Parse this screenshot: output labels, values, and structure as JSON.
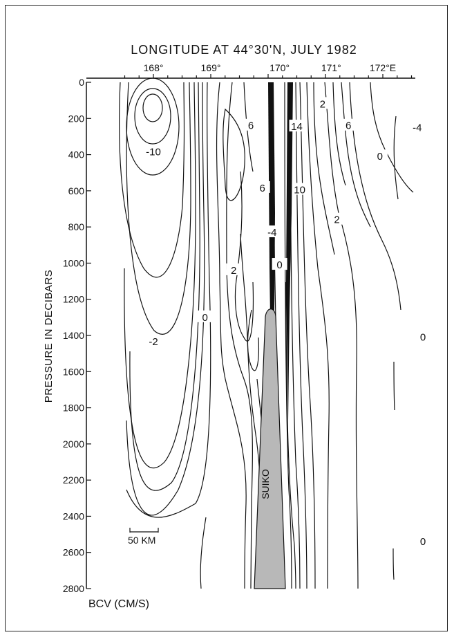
{
  "chart_data": {
    "type": "contour",
    "title": "LONGITUDE AT 44°30'N, JULY 1982",
    "xlabel": "",
    "ylabel": "PRESSURE IN DECIBARS",
    "units_label": "BCV (CM/S)",
    "scale_bar_label": "50 KM",
    "seamount_label": "SUIKO",
    "x_ticks": [
      "168°",
      "169°",
      "170°",
      "171°",
      "172°E"
    ],
    "y_ticks": [
      "0",
      "200",
      "400",
      "600",
      "800",
      "1000",
      "1200",
      "1400",
      "1600",
      "1800",
      "2000",
      "2200",
      "2400",
      "2600",
      "2800"
    ],
    "ylim": [
      0,
      2800
    ],
    "xlim": [
      167.2,
      173.5
    ],
    "y_inverted": true,
    "contour_labels": [
      {
        "text": "-10",
        "x": 168.0,
        "y": 385
      },
      {
        "text": "-2",
        "x": 168.0,
        "y": 1435
      },
      {
        "text": "0",
        "x": 168.9,
        "y": 1300
      },
      {
        "text": "2",
        "x": 169.4,
        "y": 1040
      },
      {
        "text": "6",
        "x": 169.7,
        "y": 240
      },
      {
        "text": "6",
        "x": 169.9,
        "y": 585
      },
      {
        "text": "-4",
        "x": 170.07,
        "y": 830
      },
      {
        "text": "0",
        "x": 170.2,
        "y": 1010
      },
      {
        "text": "14",
        "x": 170.5,
        "y": 245
      },
      {
        "text": "10",
        "x": 170.55,
        "y": 595
      },
      {
        "text": "2",
        "x": 170.95,
        "y": 120
      },
      {
        "text": "6",
        "x": 171.4,
        "y": 240
      },
      {
        "text": "2",
        "x": 171.2,
        "y": 760
      },
      {
        "text": "0",
        "x": 171.95,
        "y": 410
      },
      {
        "text": "-4",
        "x": 172.6,
        "y": 250
      },
      {
        "text": "0",
        "x": 172.7,
        "y": 1410
      },
      {
        "text": "0",
        "x": 172.7,
        "y": 2540
      }
    ],
    "seamount": {
      "top_pressure": 1150,
      "base_left_lon": 170.0,
      "base_right_lon": 170.5,
      "peak_lon": 170.27
    }
  }
}
